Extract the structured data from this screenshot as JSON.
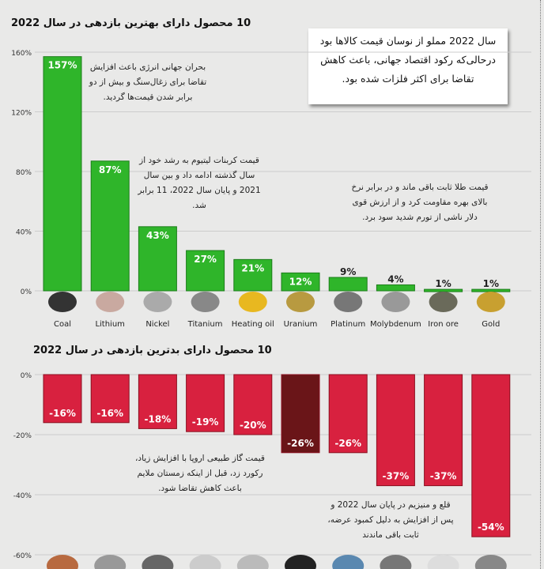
{
  "box_text": "سال 2022 مملو از نوسان قیمت کالاها بود درحالی‌که رکود اقتصاد جهانی، باعث کاهش تقاضا برای اکثر فلزات شده بود.",
  "chart_data": [
    {
      "type": "bar",
      "title": "10 محصول دارای بهترین بازدهی در سال 2022",
      "categories": [
        "Coal",
        "Lithium",
        "Nickel",
        "Titanium",
        "Heating oil",
        "Uranium",
        "Platinum",
        "Molybdenum",
        "Iron ore",
        "Gold"
      ],
      "values": [
        157,
        87,
        43,
        27,
        21,
        12,
        9,
        4,
        1,
        1
      ],
      "value_labels": [
        "157%",
        "87%",
        "43%",
        "27%",
        "21%",
        "12%",
        "9%",
        "4%",
        "1%",
        "1%"
      ],
      "ylim": [
        0,
        160
      ],
      "yticks": [
        "0%",
        "40%",
        "80%",
        "120%",
        "160%"
      ],
      "grid": true,
      "color": "#2fb52a",
      "annotations": [
        "بحران جهانی انرژی باعث افزایش تقاضا برای زغال‌سنگ و بیش از دو برابر شدن قیمت‌ها گردید.",
        "قیمت کربنات لیتیوم به رشد خود از سال گذشته ادامه داد و بین سال 2021 و پایان سال 2022، 11 برابر شد.",
        "قیمت طلا ثابت باقی ماند و در برابر نرخ بالای بهره مقاومت کرد و از ارزش قوی دلار ناشی از تورم شدید سود برد."
      ]
    },
    {
      "type": "bar",
      "title": "10 محصول دارای بدترین بازدهی در سال 2022",
      "values": [
        -16,
        -16,
        -18,
        -19,
        -20,
        -26,
        -26,
        -37,
        -37,
        -54
      ],
      "value_labels": [
        "-16%",
        "-16%",
        "-18%",
        "-19%",
        "-20%",
        "-26%",
        "-26%",
        "-37%",
        "-37%",
        "-54%"
      ],
      "ylim": [
        -60,
        0
      ],
      "yticks": [
        "0%",
        "-20%",
        "-40%",
        "-60%"
      ],
      "grid": true,
      "color": "#d8213f",
      "annotations": [
        "قیمت گاز طبیعی اروپا با افزایش زیاد، رکورد زد، قبل از اینکه زمستان ملایم باعث کاهش تقاضا شود.",
        "قلع و منیزیم در پایان سال 2022 و پس از افزایش به دلیل کمبود عرضه، ثابت باقی ماندند"
      ]
    }
  ]
}
